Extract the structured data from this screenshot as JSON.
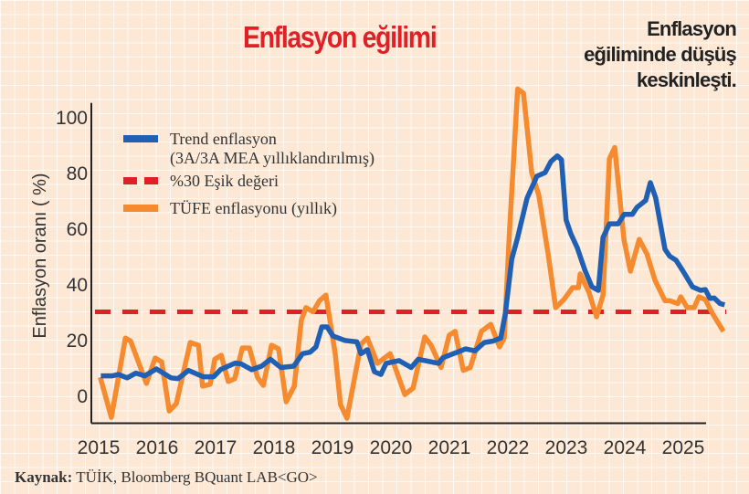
{
  "header": {
    "title": "Enflasyon eğilimi",
    "note_lines": [
      "Enflasyon",
      "eğiliminde düşüş",
      "keskinleşti."
    ]
  },
  "source": {
    "label": "Kaynak:",
    "text": "TÜİK, Bloomberg BQuant LAB<GO>"
  },
  "chart_data": {
    "type": "line",
    "title": "Enflasyon eğilimi",
    "xlabel": "",
    "ylabel": "Enflasyon oranı ( %)",
    "xlim": [
      2015,
      2026
    ],
    "ylim": [
      -10,
      105
    ],
    "xticks": [
      2015,
      2016,
      2017,
      2018,
      2019,
      2020,
      2021,
      2022,
      2023,
      2024,
      2025
    ],
    "yticks": [
      0,
      20,
      40,
      60,
      80,
      100
    ],
    "grid": true,
    "legend_position": "top-left",
    "series": [
      {
        "name": "Trend enflasyon",
        "name_line2": "(3A/3A MEA yıllıklandırılmış)",
        "color": "#1f5fb4",
        "style": "solid",
        "points": [
          [
            2015.1,
            7
          ],
          [
            2015.3,
            7
          ],
          [
            2015.4,
            7.5
          ],
          [
            2015.55,
            6.3
          ],
          [
            2015.7,
            8
          ],
          [
            2015.85,
            7
          ],
          [
            2016.05,
            9.5
          ],
          [
            2016.3,
            6.3
          ],
          [
            2016.42,
            6
          ],
          [
            2016.6,
            9
          ],
          [
            2016.85,
            6.7
          ],
          [
            2017.03,
            6.7
          ],
          [
            2017.15,
            9.3
          ],
          [
            2017.4,
            11.6
          ],
          [
            2017.5,
            11.3
          ],
          [
            2017.68,
            9.2
          ],
          [
            2017.85,
            10.5
          ],
          [
            2018.0,
            13
          ],
          [
            2018.18,
            10
          ],
          [
            2018.4,
            10.5
          ],
          [
            2018.55,
            15
          ],
          [
            2018.68,
            15.5
          ],
          [
            2018.78,
            17.4
          ],
          [
            2018.88,
            24.6
          ],
          [
            2018.97,
            24.6
          ],
          [
            2019.07,
            21.3
          ],
          [
            2019.28,
            19.7
          ],
          [
            2019.48,
            19.2
          ],
          [
            2019.55,
            15
          ],
          [
            2019.66,
            16.4
          ],
          [
            2019.78,
            8.5
          ],
          [
            2019.89,
            7.5
          ],
          [
            2019.98,
            11.5
          ],
          [
            2020.2,
            12.5
          ],
          [
            2020.41,
            10
          ],
          [
            2020.53,
            13
          ],
          [
            2020.88,
            11.5
          ],
          [
            2020.95,
            13.5
          ],
          [
            2021.34,
            16.7
          ],
          [
            2021.5,
            16
          ],
          [
            2021.66,
            19
          ],
          [
            2021.81,
            19.5
          ],
          [
            2021.94,
            20.6
          ],
          [
            2022.02,
            29.5
          ],
          [
            2022.13,
            49
          ],
          [
            2022.23,
            56.7
          ],
          [
            2022.39,
            70.8
          ],
          [
            2022.56,
            78.7
          ],
          [
            2022.7,
            80
          ],
          [
            2022.8,
            84
          ],
          [
            2022.91,
            86
          ],
          [
            2022.98,
            84.6
          ],
          [
            2023.06,
            63
          ],
          [
            2023.14,
            58
          ],
          [
            2023.25,
            53
          ],
          [
            2023.38,
            45
          ],
          [
            2023.5,
            39
          ],
          [
            2023.61,
            37.7
          ],
          [
            2023.69,
            56.7
          ],
          [
            2023.8,
            61.6
          ],
          [
            2023.95,
            61.6
          ],
          [
            2024.05,
            65
          ],
          [
            2024.19,
            65
          ],
          [
            2024.27,
            67.5
          ],
          [
            2024.42,
            70
          ],
          [
            2024.5,
            76.4
          ],
          [
            2024.59,
            71
          ],
          [
            2024.75,
            52.5
          ],
          [
            2024.83,
            50
          ],
          [
            2024.94,
            48.5
          ],
          [
            2025.06,
            44.6
          ],
          [
            2025.22,
            39
          ],
          [
            2025.36,
            37.7
          ],
          [
            2025.44,
            38
          ],
          [
            2025.52,
            34.8
          ],
          [
            2025.59,
            35
          ],
          [
            2025.69,
            33
          ],
          [
            2025.77,
            32.5
          ]
        ]
      },
      {
        "name": "%30 Eşik değeri",
        "color": "#e01f26",
        "style": "dashed",
        "points": [
          [
            2015.0,
            30
          ],
          [
            2025.8,
            30
          ]
        ]
      },
      {
        "name": "TÜFE enflasyonu (yıllık)",
        "color": "#f58a2e",
        "style": "solid",
        "points": [
          [
            2015.09,
            6.5
          ],
          [
            2015.28,
            -7.9
          ],
          [
            2015.52,
            20.6
          ],
          [
            2015.61,
            19.5
          ],
          [
            2015.88,
            4.3
          ],
          [
            2016.03,
            13.4
          ],
          [
            2016.14,
            12
          ],
          [
            2016.27,
            -5.6
          ],
          [
            2016.39,
            -3
          ],
          [
            2016.63,
            19
          ],
          [
            2016.77,
            18
          ],
          [
            2016.84,
            3.3
          ],
          [
            2016.97,
            4
          ],
          [
            2017.05,
            13
          ],
          [
            2017.16,
            14.4
          ],
          [
            2017.28,
            5
          ],
          [
            2017.39,
            6
          ],
          [
            2017.52,
            17
          ],
          [
            2017.64,
            17
          ],
          [
            2017.78,
            6.5
          ],
          [
            2017.88,
            3.6
          ],
          [
            2018.02,
            18
          ],
          [
            2018.14,
            16.7
          ],
          [
            2018.27,
            -2.3
          ],
          [
            2018.41,
            3.3
          ],
          [
            2018.53,
            27
          ],
          [
            2018.61,
            31.5
          ],
          [
            2018.73,
            30
          ],
          [
            2018.84,
            34
          ],
          [
            2018.95,
            36
          ],
          [
            2019.11,
            15
          ],
          [
            2019.2,
            -3.3
          ],
          [
            2019.31,
            -8.2
          ],
          [
            2019.55,
            18.4
          ],
          [
            2019.66,
            20.6
          ],
          [
            2019.83,
            11.5
          ],
          [
            2020.05,
            15
          ],
          [
            2020.3,
            0.3
          ],
          [
            2020.44,
            2.6
          ],
          [
            2020.64,
            21
          ],
          [
            2020.75,
            18
          ],
          [
            2020.92,
            10
          ],
          [
            2021.06,
            21.6
          ],
          [
            2021.16,
            23
          ],
          [
            2021.3,
            9
          ],
          [
            2021.42,
            10
          ],
          [
            2021.61,
            23
          ],
          [
            2021.77,
            25.5
          ],
          [
            2021.92,
            17.4
          ],
          [
            2022.0,
            20.6
          ],
          [
            2022.09,
            59
          ],
          [
            2022.23,
            110
          ],
          [
            2022.33,
            108.5
          ],
          [
            2022.47,
            80
          ],
          [
            2022.59,
            72
          ],
          [
            2022.75,
            51
          ],
          [
            2022.88,
            31.5
          ],
          [
            2023.02,
            34.4
          ],
          [
            2023.17,
            38.7
          ],
          [
            2023.27,
            38.7
          ],
          [
            2023.3,
            43.6
          ],
          [
            2023.45,
            37
          ],
          [
            2023.58,
            28.2
          ],
          [
            2023.69,
            36
          ],
          [
            2023.8,
            85
          ],
          [
            2023.89,
            89
          ],
          [
            2024.05,
            55.7
          ],
          [
            2024.16,
            44.6
          ],
          [
            2024.31,
            56
          ],
          [
            2024.44,
            50.8
          ],
          [
            2024.58,
            41.3
          ],
          [
            2024.75,
            34
          ],
          [
            2024.83,
            34
          ],
          [
            2024.97,
            33
          ],
          [
            2025.02,
            35.4
          ],
          [
            2025.13,
            31.5
          ],
          [
            2025.25,
            31.5
          ],
          [
            2025.33,
            35.4
          ],
          [
            2025.44,
            34.4
          ],
          [
            2025.56,
            29.5
          ],
          [
            2025.75,
            23
          ]
        ]
      }
    ]
  }
}
